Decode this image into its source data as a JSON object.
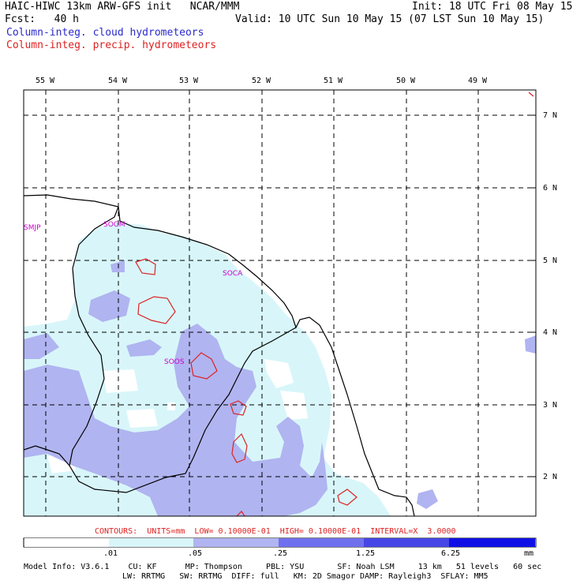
{
  "header": {
    "model_line": "HAIC-HIWC 13km ARW-GFS init   NCAR/MMM",
    "init_line": "Init: 18 UTC Fri 08 May 15",
    "fcst_line": "Fcst:   40 h",
    "valid_line": "Valid: 10 UTC Sun 10 May 15 (07 LST Sun 10 May 15)",
    "field1": "Column-integ. cloud hydrometeors",
    "field2": "Column-integ. precip. hydrometeors"
  },
  "axes": {
    "lon_labels": [
      "55 W",
      "54 W",
      "53 W",
      "52 W",
      "51 W",
      "50 W",
      "49 W"
    ],
    "lat_labels": [
      "7 N",
      "6 N",
      "5 N",
      "4 N",
      "3 N",
      "2 N"
    ]
  },
  "stations": [
    "SMJP",
    "SOGM",
    "SOCA",
    "SOOS"
  ],
  "contours_line": "CONTOURS:  UNITS=mm  LOW= 0.10000E-01  HIGH= 0.10000E-01  INTERVAL=X  3.0000",
  "colorbar": {
    "ticks": [
      ".01",
      ".05",
      ".25",
      "1.25",
      "6.25"
    ],
    "unit": "mm",
    "colors": [
      "#ffffff",
      "#d8f6fa",
      "#b0b4f0",
      "#7070ee",
      "#4646e6",
      "#1010e6"
    ]
  },
  "footer": {
    "line1": "Model Info: V3.6.1    CU: KF      MP: Thompson     PBL: YSU       SF: Noah LSM     13 km   51 levels   60 sec",
    "line2": "LW: RRTMG   SW: RRTMG  DIFF: full   KM: 2D Smagor DAMP: Rayleigh3  SFLAY: MM5"
  },
  "colors": {
    "cloud_light": "#d8f6fa",
    "cloud_medium": "#b0b4f0",
    "precip_contour": "#dd2222",
    "station_label": "#cc00cc",
    "header_blue": "#2a2acc"
  }
}
